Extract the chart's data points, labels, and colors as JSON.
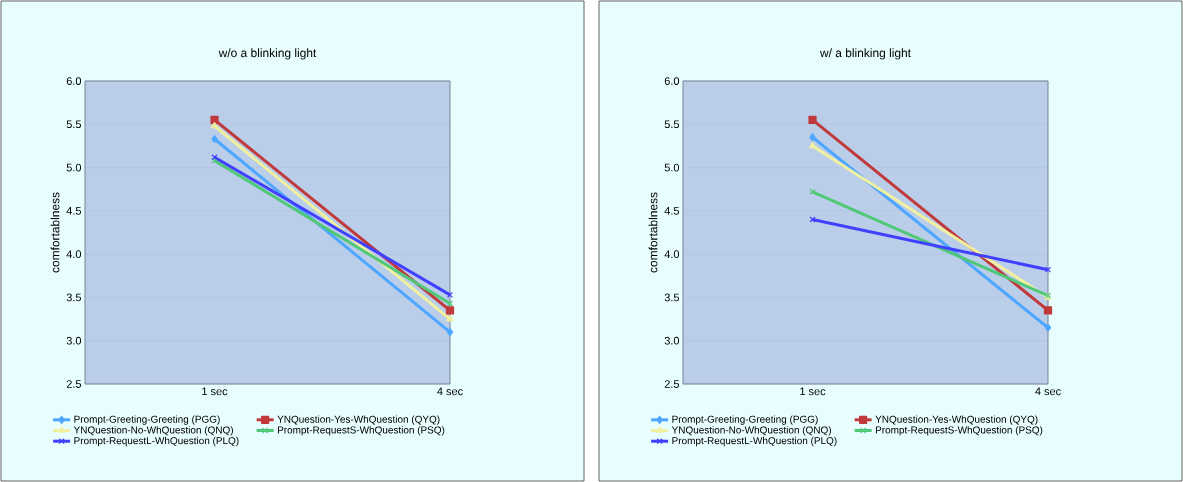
{
  "chart_data": [
    {
      "type": "line",
      "title": "w/o a blinking light",
      "ylabel": "comfortablness",
      "categories": [
        "1 sec",
        "4 sec"
      ],
      "ylim": [
        2.5,
        6.0
      ],
      "yticks": [
        {
          "value": 2.5,
          "label": "2.5"
        },
        {
          "value": 3.0,
          "label": "3.0"
        },
        {
          "value": 3.5,
          "label": "3.5"
        },
        {
          "value": 4.0,
          "label": "4.0"
        },
        {
          "value": 4.5,
          "label": "4.5"
        },
        {
          "value": 5.0,
          "label": "5.0"
        },
        {
          "value": 5.5,
          "label": "5.5"
        },
        {
          "value": 6.0,
          "label": "6.0"
        }
      ],
      "grid": "y",
      "legend": "bottom",
      "series": [
        {
          "name": "Prompt-Greeting-Greeting (PGG)",
          "color": "#4da6ff",
          "marker": "diamond",
          "values": [
            5.33,
            3.1
          ]
        },
        {
          "name": "YNQuestion-Yes-WhQuestion (QYQ)",
          "color": "#c0393b",
          "marker": "square",
          "values": [
            5.55,
            3.35
          ]
        },
        {
          "name": "YNQuestion-No-WhQuestion (QNQ)",
          "color": "#f0f0a0",
          "marker": "triangle",
          "values": [
            5.48,
            3.25
          ]
        },
        {
          "name": "Prompt-RequestS-WhQuestion (PSQ)",
          "color": "#50c878",
          "marker": "cross",
          "values": [
            5.08,
            3.43
          ]
        },
        {
          "name": "Prompt-RequestL-WhQuestion (PLQ)",
          "color": "#4040ff",
          "marker": "cross",
          "values": [
            5.12,
            3.53
          ]
        }
      ]
    },
    {
      "type": "line",
      "title": "w/ a blinking light",
      "ylabel": "comfortablness",
      "categories": [
        "1 sec",
        "4 sec"
      ],
      "ylim": [
        2.5,
        6.0
      ],
      "yticks": [
        {
          "value": 2.5,
          "label": "2.5"
        },
        {
          "value": 3.0,
          "label": "3.0"
        },
        {
          "value": 3.5,
          "label": "3.5"
        },
        {
          "value": 4.0,
          "label": "4.0"
        },
        {
          "value": 4.5,
          "label": "4.5"
        },
        {
          "value": 5.0,
          "label": "5.0"
        },
        {
          "value": 5.5,
          "label": "5.5"
        },
        {
          "value": 6.0,
          "label": "6.0"
        }
      ],
      "grid": "y",
      "legend": "bottom",
      "series": [
        {
          "name": "Prompt-Greeting-Greeting (PGG)",
          "color": "#4da6ff",
          "marker": "diamond",
          "values": [
            5.35,
            3.15
          ]
        },
        {
          "name": "YNQuestion-Yes-WhQuestion (QYQ)",
          "color": "#c0393b",
          "marker": "square",
          "values": [
            5.55,
            3.35
          ]
        },
        {
          "name": "YNQuestion-No-WhQuestion (QNQ)",
          "color": "#f0f0a0",
          "marker": "triangle",
          "values": [
            5.25,
            3.5
          ]
        },
        {
          "name": "Prompt-RequestS-WhQuestion (PSQ)",
          "color": "#50c878",
          "marker": "cross",
          "values": [
            4.72,
            3.52
          ]
        },
        {
          "name": "Prompt-RequestL-WhQuestion (PLQ)",
          "color": "#4040ff",
          "marker": "cross",
          "values": [
            4.4,
            3.82
          ]
        }
      ]
    }
  ]
}
